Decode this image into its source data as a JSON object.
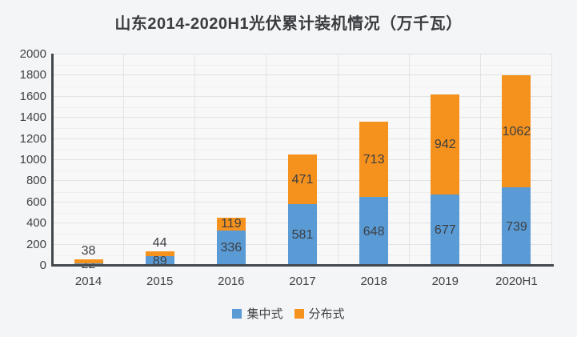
{
  "chart_data": {
    "type": "bar",
    "stacked": true,
    "title": "山东2014-2020H1光伏累计装机情况（万千瓦）",
    "categories": [
      "2014",
      "2015",
      "2016",
      "2017",
      "2018",
      "2019",
      "2020H1"
    ],
    "series": [
      {
        "name": "集中式",
        "color": "#5b9bd5",
        "values": [
          22,
          89,
          336,
          581,
          648,
          677,
          739
        ]
      },
      {
        "name": "分布式",
        "color": "#f5921e",
        "values": [
          38,
          44,
          119,
          471,
          713,
          942,
          1062
        ]
      }
    ],
    "totals": [
      60,
      133,
      455,
      1052,
      1361,
      1619,
      1801
    ],
    "ylim": [
      0,
      2000
    ],
    "ytick_step": 200,
    "grid": true,
    "legend_position": "bottom",
    "xlabel": "",
    "ylabel": ""
  },
  "colors": {
    "canvas_background": "#f4f5f7",
    "plot_background": "#f8f8f9",
    "axis_line": "#43484d",
    "gridline": "#e2e3e5",
    "text": "#3f4346"
  }
}
